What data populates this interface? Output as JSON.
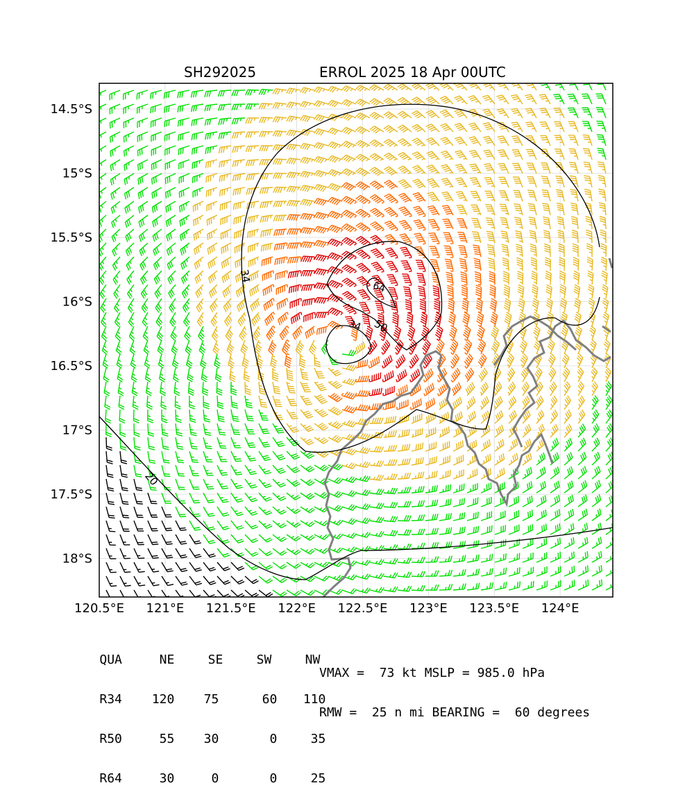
{
  "title": {
    "storm_id": "SH292025",
    "name_time": "ERROL 2025 18 Apr 00UTC"
  },
  "axes": {
    "lon_ticks": [
      "120.5°E",
      "121°E",
      "121.5°E",
      "122°E",
      "122.5°E",
      "123°E",
      "123.5°E",
      "124°E"
    ],
    "lat_ticks": [
      "14.5°S",
      "15°S",
      "15.5°S",
      "16°S",
      "16.5°S",
      "17°S",
      "17.5°S",
      "18°S"
    ],
    "lon_range": [
      120.5,
      124.4
    ],
    "lat_range": [
      -18.3,
      -14.3
    ]
  },
  "contours": [
    {
      "label": "34"
    },
    {
      "label": "50"
    },
    {
      "label": "64"
    },
    {
      "label": "34"
    },
    {
      "label": "20"
    }
  ],
  "barb_colors": {
    "below_20": "#000000",
    "r20_34": "#00e000",
    "r34_50": "#e8b820",
    "r50_64": "#ff6a00",
    "r64_plus": "#e00000",
    "coastline": "#808080"
  },
  "wind_radii": {
    "header": [
      "QUA",
      "NE",
      "SE",
      "SW",
      "NW"
    ],
    "rows": [
      [
        "R34",
        "120",
        "75",
        "60",
        "110"
      ],
      [
        "R50",
        "55",
        "30",
        "0",
        "35"
      ],
      [
        "R64",
        "30",
        "0",
        "0",
        "25"
      ]
    ]
  },
  "summary": {
    "line1": "VMAX =  73 kt MSLP = 985.0 hPa",
    "line2": "RMW =  25 n mi BEARING =  60 degrees"
  }
}
